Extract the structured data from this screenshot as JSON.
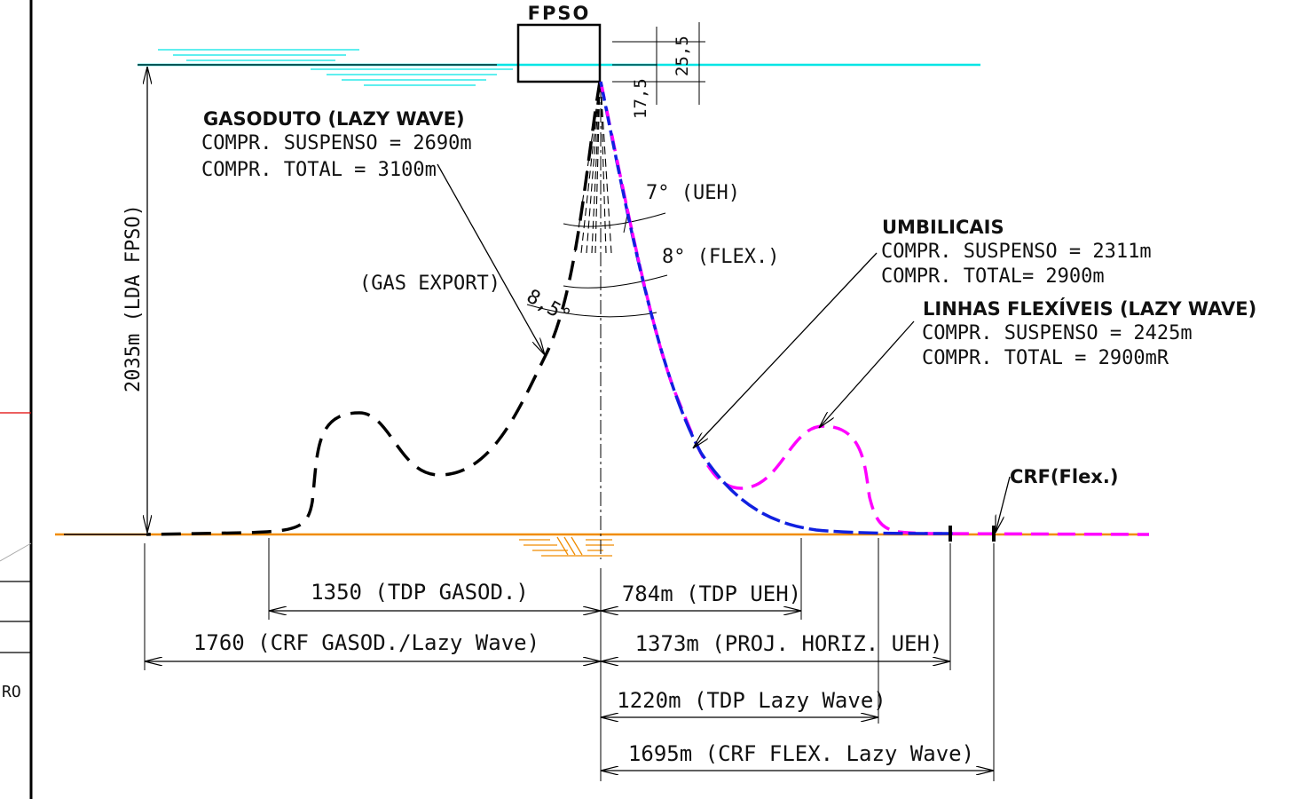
{
  "labels": {
    "fpso": "FPSO",
    "dim_25_5": "25,5",
    "dim_17_5": "17,5",
    "depth": "2035m (LDA FPSO)",
    "gas_title": "GASODUTO (LAZY WAVE)",
    "gas_susp": "COMPR. SUSPENSO = 2690m",
    "gas_total": "COMPR. TOTAL = 3100m",
    "gas_export": "(GAS EXPORT)",
    "angle_ueh": "7° (UEH)",
    "angle_flex": "8° (FLEX.)",
    "angle_gas": "8,5°",
    "umb_title": "UMBILICAIS",
    "umb_susp": "COMPR. SUSPENSO = 2311m",
    "umb_total": "COMPR. TOTAL= 2900m",
    "flex_title": "LINHAS FLEXÍVEIS (LAZY WAVE)",
    "flex_susp": "COMPR. SUSPENSO = 2425m",
    "flex_total": "COMPR. TOTAL = 2900mR",
    "crf_flex": "CRF(Flex.)",
    "dim_1350": "1350 (TDP GASOD.)",
    "dim_1760": "1760 (CRF GASOD./Lazy Wave)",
    "dim_784": "784m (TDP UEH)",
    "dim_1373": "1373m (PROJ. HORIZ. UEH)",
    "dim_1220": "1220m (TDP Lazy Wave)",
    "dim_1695": "1695m (CRF FLEX. Lazy Wave)",
    "edge_ro": "RO"
  },
  "colors": {
    "sea_surface": "#00e5e5",
    "seabed": "#f08c00",
    "gas_line": "#000000",
    "umbilical": "#1020e0",
    "flexible": "#ff00ff",
    "red_mark": "#e00000"
  }
}
